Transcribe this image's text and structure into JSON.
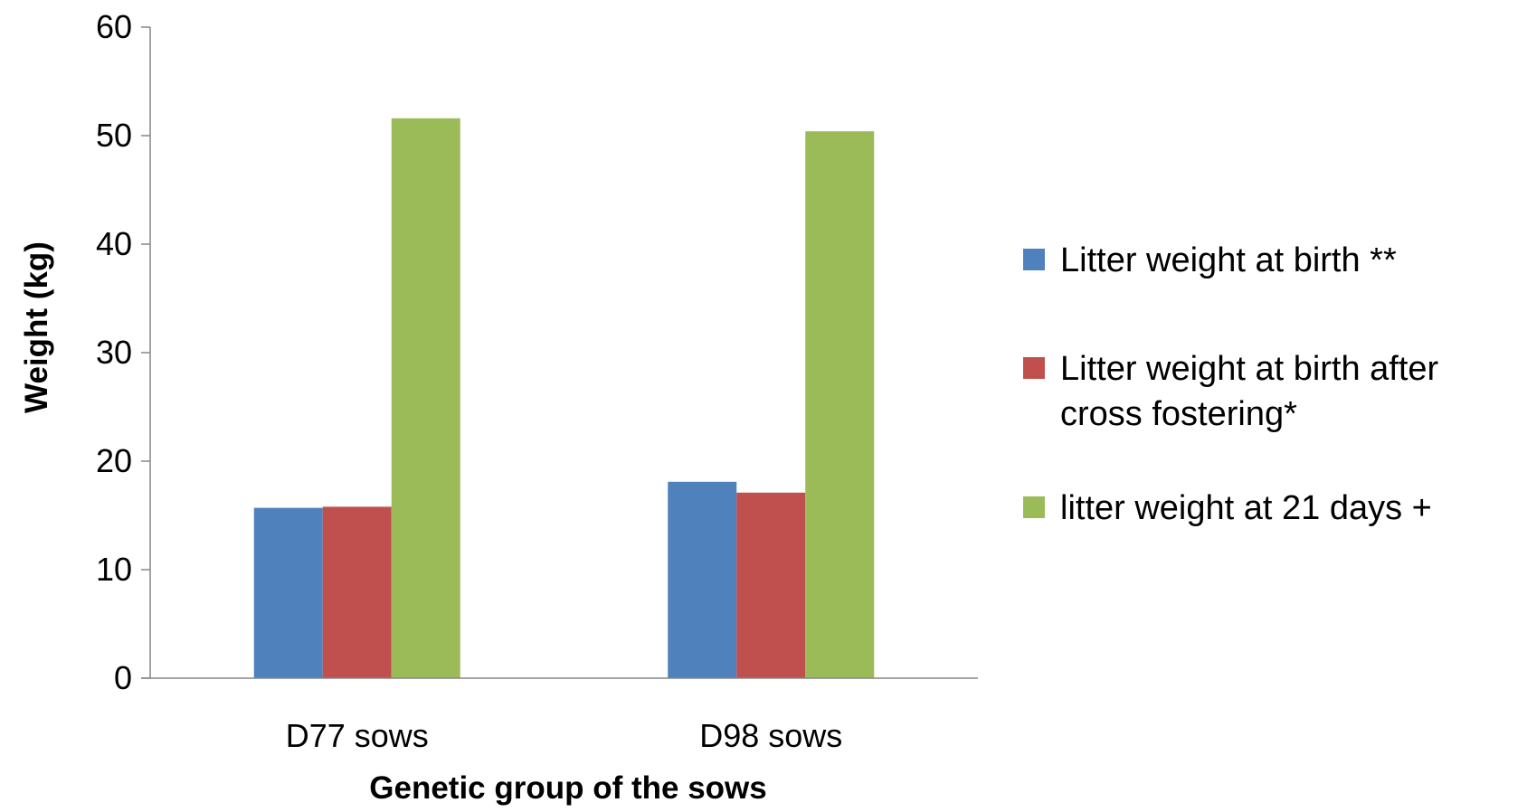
{
  "chart_data": {
    "type": "bar",
    "title": "",
    "xlabel": "Genetic group of the sows",
    "ylabel": "Weight (kg)",
    "ylim": [
      0,
      60
    ],
    "yticks": [
      "0",
      "10",
      "20",
      "30",
      "40",
      "50",
      "60"
    ],
    "ytick_values": [
      0,
      10,
      20,
      30,
      40,
      50,
      60
    ],
    "categories": [
      "D77 sows",
      "D98 sows"
    ],
    "grid": false,
    "legend_position": "right",
    "series": [
      {
        "name": "Litter weight at birth **",
        "legend_lines": [
          "Litter weight at birth **"
        ],
        "color": "#4F81BD",
        "values": [
          15.7,
          18.1
        ]
      },
      {
        "name": "Litter weight at birth after cross fostering*",
        "legend_lines": [
          "Litter weight at birth after",
          "cross fostering*"
        ],
        "color": "#C0504D",
        "values": [
          15.8,
          17.1
        ]
      },
      {
        "name": "litter weight at 21 days +",
        "legend_lines": [
          "litter weight at 21 days +"
        ],
        "color": "#9BBB59",
        "values": [
          51.6,
          50.4
        ]
      }
    ]
  }
}
